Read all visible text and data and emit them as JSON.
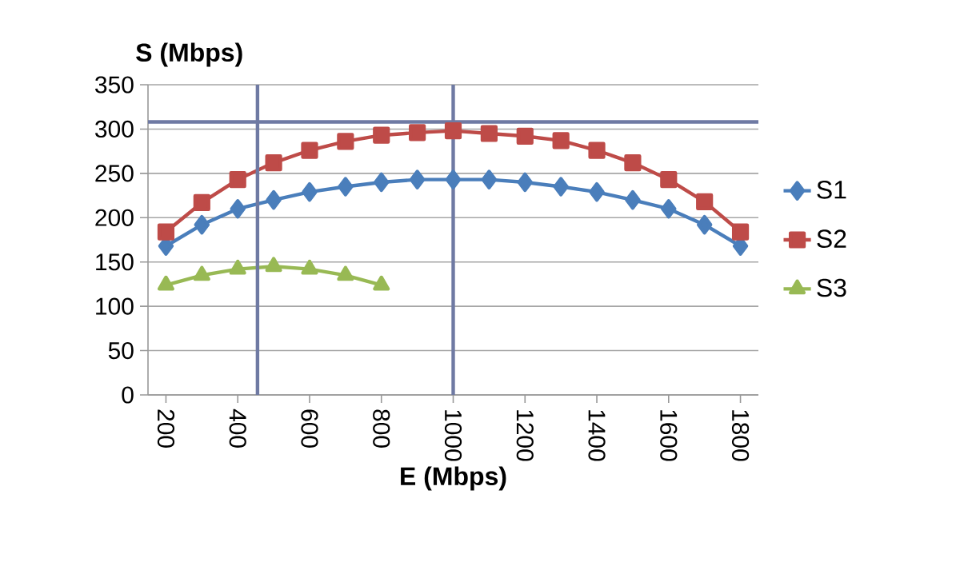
{
  "chart_data": {
    "type": "line",
    "xlabel": "E  (Mbps)",
    "ylabel": "S (Mbps)",
    "x": [
      200,
      300,
      400,
      500,
      600,
      700,
      800,
      900,
      1000,
      1100,
      1200,
      1300,
      1400,
      1500,
      1600,
      1700,
      1800
    ],
    "xlim": [
      150,
      1850
    ],
    "xticks": [
      200,
      400,
      600,
      800,
      1000,
      1200,
      1400,
      1600,
      1800
    ],
    "ylim": [
      0,
      350
    ],
    "yticks": [
      0,
      50,
      100,
      150,
      200,
      250,
      300,
      350
    ],
    "grid": "y",
    "legend": "right",
    "series": [
      {
        "name": "S1",
        "color": "#4a7ebb",
        "marker": "diamond",
        "values": [
          168,
          192,
          210,
          220,
          229,
          235,
          240,
          243,
          243,
          243,
          240,
          235,
          229,
          220,
          210,
          192,
          168
        ]
      },
      {
        "name": "S2",
        "color": "#be4b48",
        "marker": "square",
        "values": [
          184,
          217,
          243,
          262,
          276,
          286,
          293,
          296,
          298,
          295,
          292,
          287,
          276,
          262,
          243,
          218,
          184
        ]
      },
      {
        "name": "S3",
        "color": "#98b954",
        "marker": "triangle",
        "x": [
          200,
          300,
          400,
          500,
          600,
          700,
          800
        ],
        "values": [
          124,
          135,
          142,
          145,
          142,
          135,
          124
        ]
      }
    ],
    "ref_lines": [
      {
        "axis": "x",
        "value": 455,
        "color": "#6f7aa3"
      },
      {
        "axis": "x",
        "value": 1000,
        "color": "#6f7aa3"
      },
      {
        "axis": "y",
        "value": 308,
        "color": "#6f7aa3"
      }
    ]
  }
}
